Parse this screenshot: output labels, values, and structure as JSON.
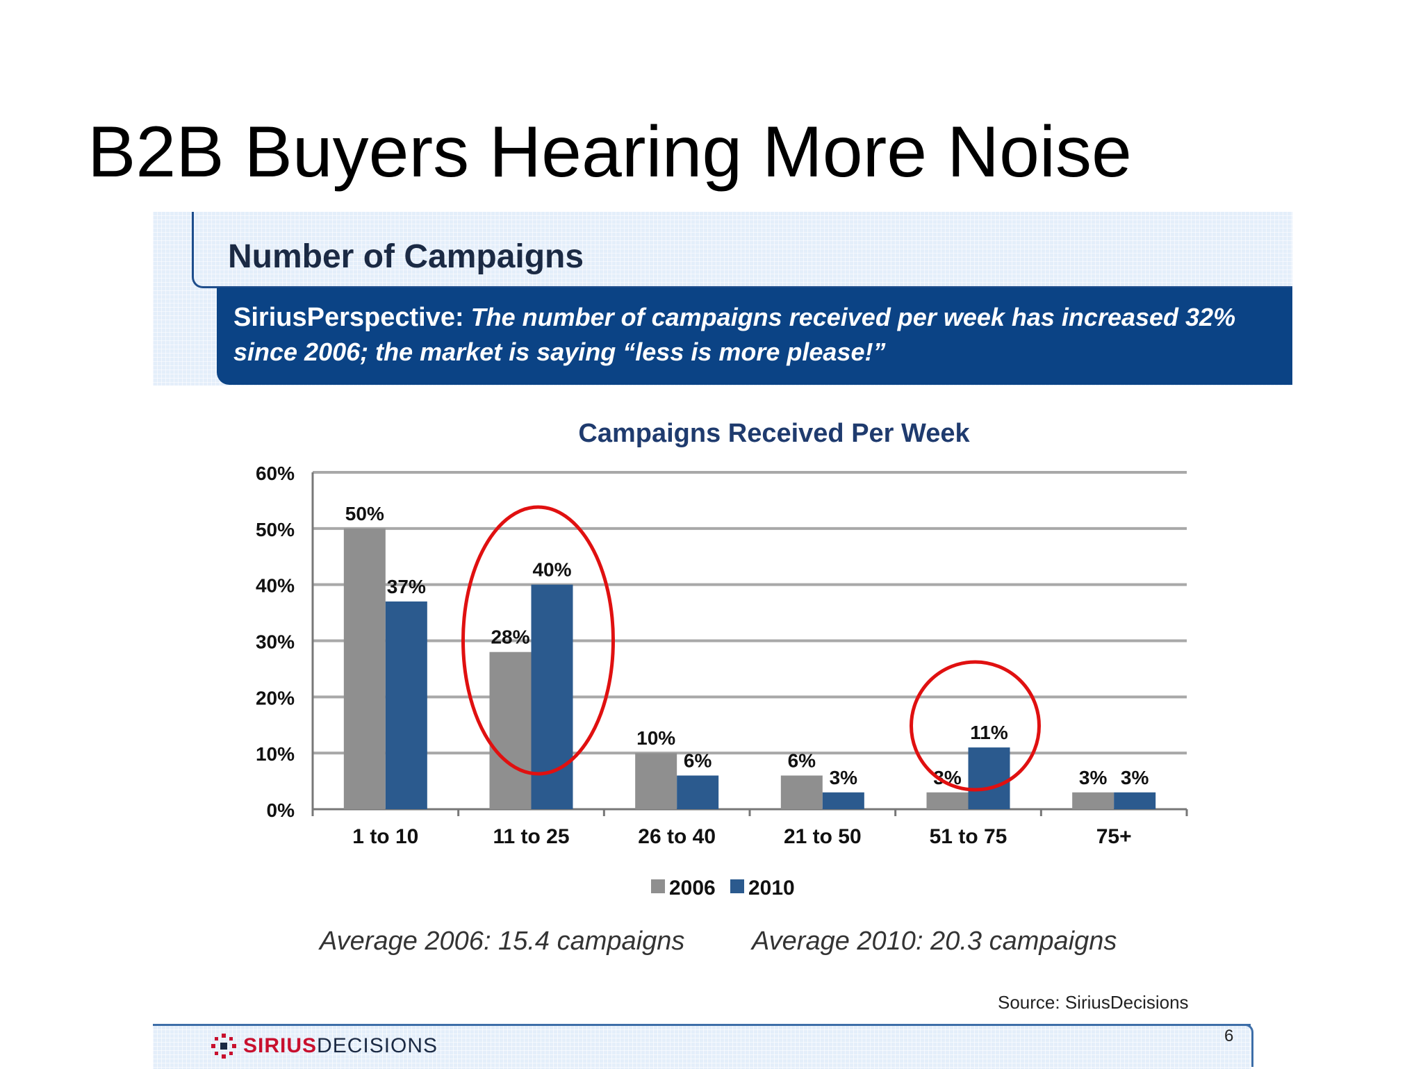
{
  "slide": {
    "title": "B2B Buyers Hearing More Noise",
    "header_heading": "Number of Campaigns",
    "perspective_lead": "SiriusPerspective:",
    "perspective_body": "The number of campaigns received per week has increased 32% since 2006; the market is saying “less is more please!”",
    "average_2006": "Average 2006: 15.4 campaigns",
    "average_2010": "Average 2010: 20.3 campaigns",
    "source": "Source:  SiriusDecisions",
    "logo_sirius": "SIRIUS",
    "logo_decisions": "DECISIONS",
    "page_number": "6"
  },
  "colors": {
    "series_2006": "#8f8f8f",
    "series_2010": "#2b5a8e",
    "highlight_circle": "#e01010",
    "header_blue": "#0b4385",
    "chart_title": "#1f3b6e"
  },
  "chart_data": {
    "type": "bar",
    "title": "Campaigns Received Per Week",
    "categories": [
      "1 to 10",
      "11 to 25",
      "26 to 40",
      "21 to 50",
      "51 to 75",
      "75+"
    ],
    "series": [
      {
        "name": "2006",
        "values": [
          50,
          28,
          10,
          6,
          3,
          3
        ],
        "labels": [
          "50%",
          "28%",
          "10%",
          "6%",
          "3%",
          "3%"
        ]
      },
      {
        "name": "2010",
        "values": [
          37,
          40,
          6,
          3,
          11,
          3
        ],
        "labels": [
          "37%",
          "40%",
          "6%",
          "3%",
          "11%",
          "3%"
        ]
      }
    ],
    "ylim": [
      0,
      60
    ],
    "yticks": [
      "0%",
      "10%",
      "20%",
      "30%",
      "40%",
      "50%",
      "60%"
    ],
    "grid": true,
    "legend": "bottom-center",
    "highlighted_categories": [
      "11 to 25",
      "51 to 75"
    ]
  }
}
